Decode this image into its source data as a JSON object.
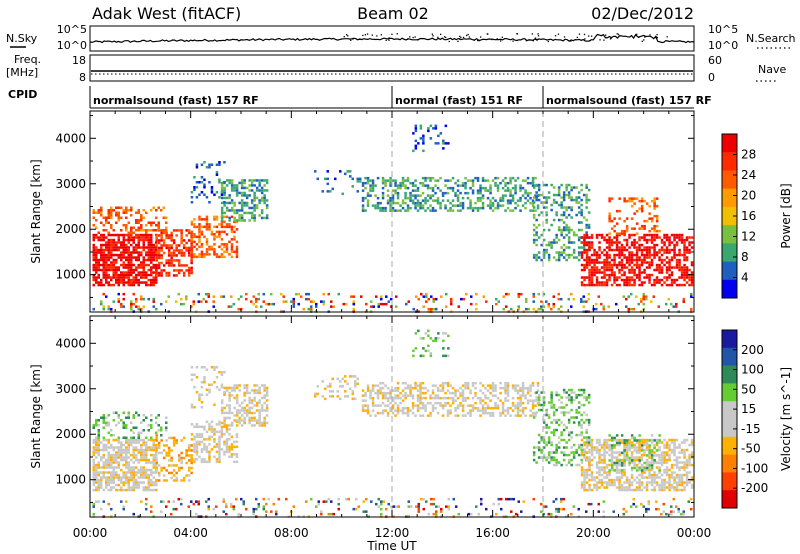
{
  "header": {
    "station": "Adak West (fitACF)",
    "beam": "Beam 02",
    "date": "02/Dec/2012"
  },
  "aux_panels": {
    "nsky_label": "N.Sky",
    "nsky_ticks": [
      "10^5",
      "10^0"
    ],
    "nsearch_label": "N.Search",
    "nsearch_ticks": [
      "10^5",
      "10^0"
    ],
    "freq_label_line1": "Freq.",
    "freq_label_line2": "[MHz]",
    "freq_ticks": [
      "18",
      "8"
    ],
    "nave_label": "Nave",
    "nave_ticks": [
      "60",
      "0"
    ],
    "cpid_label": "CPID"
  },
  "cpid_segments": [
    {
      "label": "normalsound (fast) 157 RF",
      "start_h": 0,
      "end_h": 12
    },
    {
      "label": "normal (fast) 151 RF",
      "start_h": 12,
      "end_h": 18
    },
    {
      "label": "normalsound (fast) 157 RF",
      "start_h": 18,
      "end_h": 24
    }
  ],
  "chart_data": [
    {
      "type": "heatmap",
      "ylabel": "Slant Range [km]",
      "xlabel": "Time UT",
      "x_tick_labels": [
        "00:00",
        "04:00",
        "08:00",
        "12:00",
        "16:00",
        "20:00",
        "00:00"
      ],
      "x_range_hours": [
        0,
        24
      ],
      "y_range_km": [
        180,
        4600
      ],
      "y_ticks": [
        1000,
        2000,
        3000,
        4000
      ],
      "colorbar": {
        "label": "Power [dB]",
        "tick_labels": [
          "28",
          "24",
          "20",
          "16",
          "12",
          "8",
          "4"
        ],
        "colors": [
          "#0000ee",
          "#1f5fbf",
          "#3aa86e",
          "#7bbf3f",
          "#f0c000",
          "#ff9a00",
          "#ff5a00",
          "#ff2a00",
          "#ee0000"
        ]
      },
      "dashed_vlines_h": [
        12,
        18
      ],
      "regions": [
        {
          "t0": 0.1,
          "t1": 2.6,
          "r0": 800,
          "r1": 1900,
          "c": 8,
          "d": 0.75
        },
        {
          "t0": 2.6,
          "t1": 4.0,
          "r0": 1000,
          "r1": 2000,
          "c": 7,
          "d": 0.55
        },
        {
          "t0": 4.0,
          "t1": 5.8,
          "r0": 1400,
          "r1": 2300,
          "c": 6,
          "d": 0.45
        },
        {
          "t0": 0.1,
          "t1": 3.0,
          "r0": 1900,
          "r1": 2500,
          "c": 6,
          "d": 0.4
        },
        {
          "t0": 5.2,
          "t1": 7.0,
          "r0": 2200,
          "r1": 3100,
          "c": 2,
          "d": 0.5
        },
        {
          "t0": 4.0,
          "t1": 5.4,
          "r0": 2600,
          "r1": 3500,
          "c": 1,
          "d": 0.2
        },
        {
          "t0": 8.8,
          "t1": 10.8,
          "r0": 2800,
          "r1": 3300,
          "c": 1,
          "d": 0.12
        },
        {
          "t0": 10.8,
          "t1": 17.8,
          "r0": 2400,
          "r1": 3150,
          "c": 2,
          "d": 0.42
        },
        {
          "t0": 12.8,
          "t1": 14.2,
          "r0": 3700,
          "r1": 4300,
          "c": 1,
          "d": 0.2
        },
        {
          "t0": 17.6,
          "t1": 19.8,
          "r0": 1300,
          "r1": 3000,
          "c": 2,
          "d": 0.32
        },
        {
          "t0": 19.5,
          "t1": 23.9,
          "r0": 800,
          "r1": 1900,
          "c": 8,
          "d": 0.6
        },
        {
          "t0": 20.6,
          "t1": 22.6,
          "r0": 1900,
          "r1": 2700,
          "c": 6,
          "d": 0.3
        },
        {
          "t0": 0.1,
          "t1": 23.9,
          "r0": 200,
          "r1": 600,
          "c": -1,
          "d": 0.16
        }
      ]
    },
    {
      "type": "heatmap",
      "ylabel": "Slant Range [km]",
      "xlabel": "Time UT",
      "x_tick_labels": [
        "00:00",
        "04:00",
        "08:00",
        "12:00",
        "16:00",
        "20:00",
        "00:00"
      ],
      "x_range_hours": [
        0,
        24
      ],
      "y_range_km": [
        180,
        4600
      ],
      "y_ticks": [
        1000,
        2000,
        3000,
        4000
      ],
      "colorbar": {
        "label": "Velocity [m s^-1]",
        "tick_labels": [
          "200",
          "100",
          "50",
          "15",
          "-15",
          "-50",
          "-100",
          "-200"
        ],
        "colors": [
          "#e00000",
          "#ff4000",
          "#ff8000",
          "#ffb000",
          "#c8c8c8",
          "#c8c8c8",
          "#66cc33",
          "#2e8b57",
          "#2255aa",
          "#1a1aa0"
        ]
      },
      "dashed_vlines_h": [
        12,
        18
      ],
      "regions": [
        {
          "t0": 0.1,
          "t1": 2.6,
          "r0": 800,
          "r1": 1900,
          "c": 4,
          "d": 0.7
        },
        {
          "t0": 2.6,
          "t1": 4.0,
          "r0": 1000,
          "r1": 2000,
          "c": 3,
          "d": 0.35
        },
        {
          "t0": 4.0,
          "t1": 5.8,
          "r0": 1400,
          "r1": 2300,
          "c": 4,
          "d": 0.45
        },
        {
          "t0": 0.1,
          "t1": 3.0,
          "r0": 1900,
          "r1": 2500,
          "c": 6,
          "d": 0.3
        },
        {
          "t0": 5.2,
          "t1": 7.0,
          "r0": 2200,
          "r1": 3100,
          "c": 4,
          "d": 0.5
        },
        {
          "t0": 4.0,
          "t1": 5.4,
          "r0": 2600,
          "r1": 3500,
          "c": 4,
          "d": 0.18
        },
        {
          "t0": 8.8,
          "t1": 10.8,
          "r0": 2800,
          "r1": 3300,
          "c": 4,
          "d": 0.15
        },
        {
          "t0": 10.8,
          "t1": 17.8,
          "r0": 2400,
          "r1": 3150,
          "c": 4,
          "d": 0.45
        },
        {
          "t0": 12.8,
          "t1": 14.2,
          "r0": 3700,
          "r1": 4300,
          "c": 6,
          "d": 0.2
        },
        {
          "t0": 17.6,
          "t1": 19.8,
          "r0": 1300,
          "r1": 3000,
          "c": 6,
          "d": 0.3
        },
        {
          "t0": 19.5,
          "t1": 23.9,
          "r0": 800,
          "r1": 1900,
          "c": 4,
          "d": 0.6
        },
        {
          "t0": 20.6,
          "t1": 22.6,
          "r0": 1200,
          "r1": 2000,
          "c": 6,
          "d": 0.3
        },
        {
          "t0": 0.1,
          "t1": 23.9,
          "r0": 200,
          "r1": 600,
          "c": -1,
          "d": 0.14
        }
      ]
    }
  ]
}
